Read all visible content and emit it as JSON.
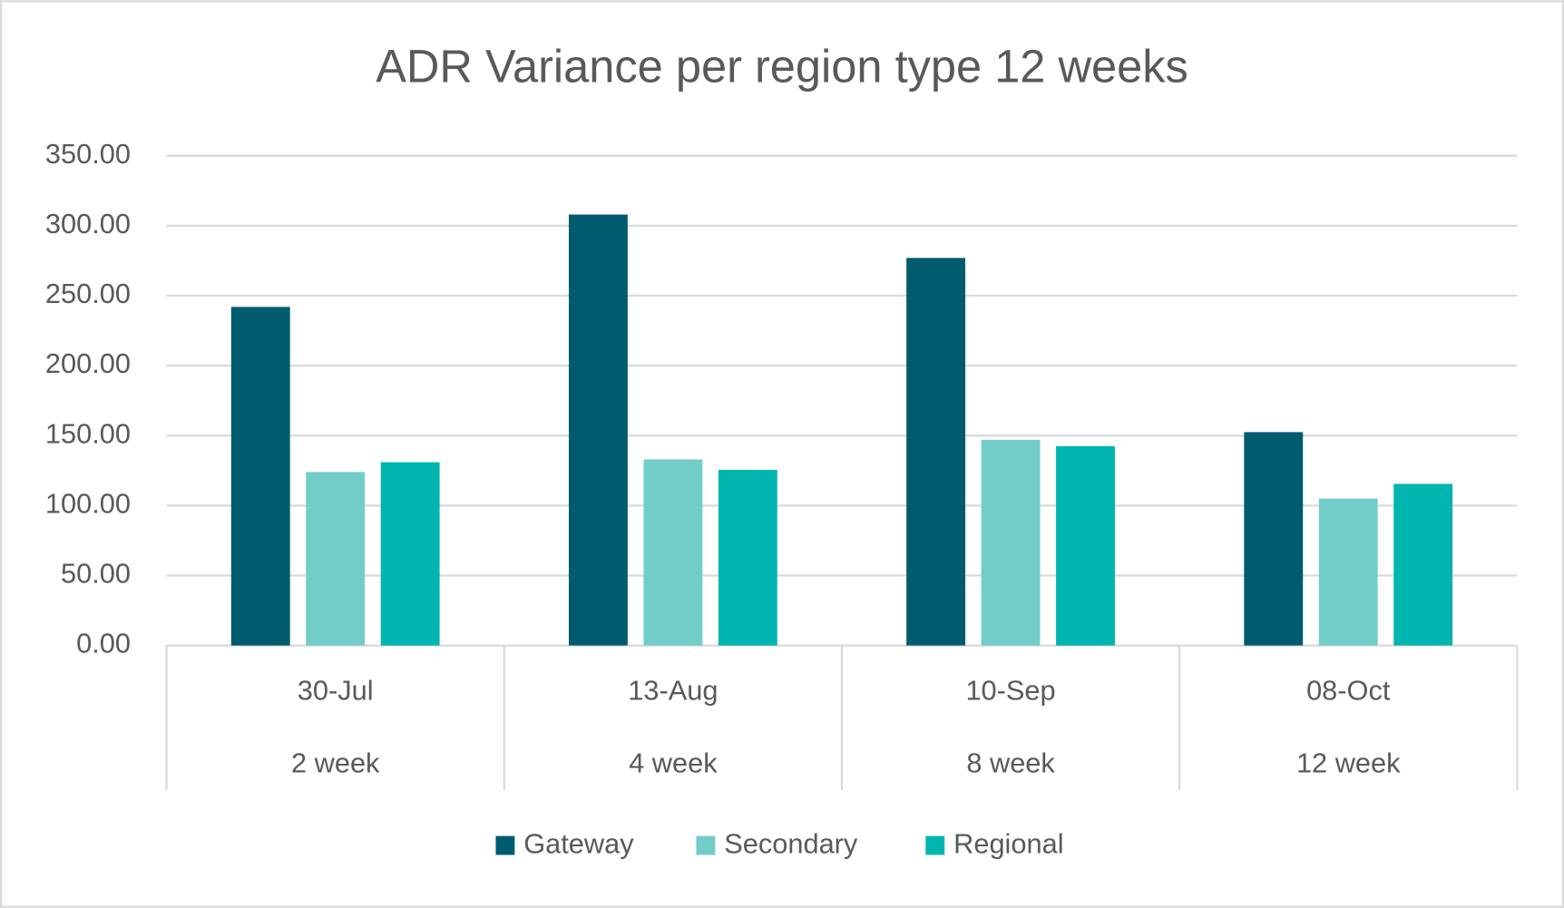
{
  "chart_data": {
    "type": "bar",
    "title": "ADR Variance per region type 12 weeks",
    "categories": [
      "30-Jul",
      "13-Aug",
      "10-Sep",
      "08-Oct"
    ],
    "sublabels": [
      "2 week",
      "4 week",
      "8 week",
      "12 week"
    ],
    "series": [
      {
        "name": "Gateway",
        "color": "#005b6e",
        "values": [
          242,
          308,
          277,
          152.5
        ]
      },
      {
        "name": "Secondary",
        "color": "#72cdc8",
        "values": [
          124,
          133,
          147,
          105
        ]
      },
      {
        "name": "Regional",
        "color": "#00b5b0",
        "values": [
          131,
          125.5,
          142.5,
          115.5
        ]
      }
    ],
    "ylim": [
      0,
      350
    ],
    "yticks": [
      {
        "value": 0,
        "label": "0.00"
      },
      {
        "value": 50,
        "label": "50.00"
      },
      {
        "value": 100,
        "label": "100.00"
      },
      {
        "value": 150,
        "label": "150.00"
      },
      {
        "value": 200,
        "label": "200.00"
      },
      {
        "value": 250,
        "label": "250.00"
      },
      {
        "value": 300,
        "label": "300.00"
      },
      {
        "value": 350,
        "label": "350.00"
      }
    ],
    "grid": true,
    "legend": "bottom"
  }
}
